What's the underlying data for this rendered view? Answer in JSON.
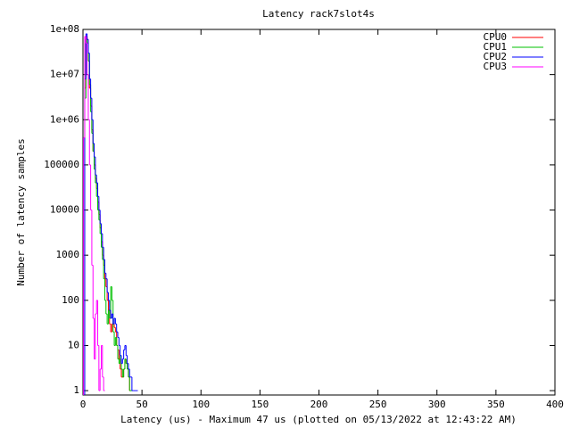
{
  "chart_data": {
    "type": "step",
    "title": "Latency rack7slot4s",
    "xlabel": "Latency (us) - Maximum 47 us (plotted on 05/13/2022 at 12:43:22 AM)",
    "ylabel": "Number of latency samples",
    "log_y": true,
    "legend": "top-right",
    "xlim": [
      0,
      400
    ],
    "xticks": [
      0,
      50,
      100,
      150,
      200,
      250,
      300,
      350,
      400
    ],
    "ylim": [
      0.8,
      100000000
    ],
    "yticks": [
      {
        "value": 1,
        "label": "1"
      },
      10,
      100,
      1000,
      10000,
      100000,
      {
        "value": 1000000,
        "label": "1e+06"
      },
      {
        "value": 10000000,
        "label": "1e+07"
      },
      {
        "value": 100000000,
        "label": "1e+08"
      }
    ],
    "x": [
      0,
      1,
      2,
      3,
      4,
      5,
      6,
      7,
      8,
      9,
      10,
      11,
      12,
      13,
      14,
      15,
      16,
      17,
      18,
      19,
      20,
      21,
      22,
      23,
      24,
      25,
      26,
      27,
      28,
      29,
      30,
      31,
      32,
      33,
      34,
      35,
      36,
      37,
      38,
      39,
      40,
      41,
      42,
      43,
      44,
      45,
      46,
      47
    ],
    "series": [
      {
        "name": "CPU0",
        "color": "#ff0000",
        "values": [
          null,
          null,
          5000000,
          70000000,
          60000000,
          20000000,
          5000000,
          2000000,
          600000,
          200000,
          100000,
          50000,
          30000,
          15000,
          8000,
          4000,
          2000,
          1000,
          600,
          300,
          200,
          100,
          60,
          30,
          20,
          30,
          30,
          25,
          20,
          10,
          8,
          5,
          3,
          2,
          2,
          3,
          5,
          4,
          3,
          2,
          1,
          null,
          null,
          null,
          null,
          null,
          null,
          null
        ]
      },
      {
        "name": "CPU1",
        "color": "#00c000",
        "values": [
          null,
          null,
          3000000,
          60000000,
          50000000,
          20000000,
          6000000,
          1500000,
          500000,
          200000,
          80000,
          40000,
          20000,
          10000,
          6000,
          3000,
          1500,
          800,
          300,
          100,
          50,
          30,
          60,
          40,
          200,
          100,
          20,
          10,
          15,
          10,
          5,
          4,
          6,
          3,
          2,
          3,
          5,
          4,
          3,
          2,
          1,
          1,
          null,
          null,
          null,
          null,
          null,
          null
        ]
      },
      {
        "name": "CPU2",
        "color": "#0000ff",
        "values": [
          null,
          null,
          8000000,
          80000000,
          60000000,
          30000000,
          8000000,
          3000000,
          1000000,
          300000,
          150000,
          60000,
          40000,
          20000,
          10000,
          5000,
          3000,
          1500,
          800,
          400,
          300,
          150,
          100,
          60,
          40,
          50,
          30,
          40,
          30,
          20,
          15,
          10,
          6,
          4,
          5,
          8,
          10,
          6,
          4,
          3,
          2,
          2,
          1,
          1,
          1,
          1,
          1,
          null
        ]
      },
      {
        "name": "CPU3",
        "color": "#ff00ff",
        "values": [
          null,
          400000,
          70000000,
          50000000,
          10000000,
          1000000,
          100000,
          10000,
          600,
          40,
          5,
          50,
          100,
          10,
          1,
          3,
          10,
          2,
          1,
          null,
          null,
          null,
          null,
          null,
          null,
          null,
          null,
          null,
          null,
          null,
          null,
          null,
          null,
          null,
          null,
          null,
          null,
          null,
          null,
          null,
          null,
          null,
          null,
          null,
          null,
          null,
          null,
          null
        ]
      }
    ]
  }
}
